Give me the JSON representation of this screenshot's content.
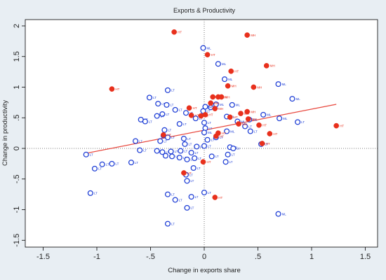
{
  "chart_data": {
    "type": "scatter",
    "title": "Exports & Productivity",
    "xlabel": "Change in exports share",
    "ylabel": "Change in productivity",
    "xlim": [
      -1.6,
      1.6
    ],
    "ylim": [
      -1.6,
      2.1
    ],
    "xticks": [
      -1.5,
      -1,
      -0.5,
      0,
      0.5,
      1,
      1.5
    ],
    "xtick_labels": [
      "-1.5",
      "-1",
      "-.5",
      "0",
      ".5",
      "1",
      "1.5"
    ],
    "yticks": [
      -1.5,
      -1,
      -0.5,
      0,
      0.5,
      1,
      1.5,
      2
    ],
    "ytick_labels": [
      "-1.5",
      "-1",
      "-.5",
      "0",
      ".5",
      "1",
      "1.5",
      "2"
    ],
    "reference_lines": {
      "x": 0,
      "y": 0,
      "style": "dotted"
    },
    "fit_line": {
      "x": [
        -1.1,
        1.23
      ],
      "y": [
        -0.08,
        0.72
      ],
      "color": "#e8473d"
    },
    "grid": false,
    "colors": {
      "hollow": "#1f3fd6",
      "filled": "#e8301c",
      "fit": "#e8473d",
      "background": "#e8eef3",
      "plot_area": "#ffffff"
    },
    "series": [
      {
        "marker": "hollow",
        "points": [
          {
            "x": -0.01,
            "y": 1.64,
            "label": "ML"
          },
          {
            "x": 0.13,
            "y": 1.38,
            "label": "ML"
          },
          {
            "x": 0.19,
            "y": 1.13,
            "label": "ML"
          },
          {
            "x": 0.69,
            "y": 1.05,
            "label": "ML"
          },
          {
            "x": 0.82,
            "y": 0.81,
            "label": "ML"
          },
          {
            "x": -0.34,
            "y": 0.95,
            "label": "LT"
          },
          {
            "x": -0.51,
            "y": 0.83,
            "label": "LT"
          },
          {
            "x": -0.43,
            "y": 0.73,
            "label": "LT"
          },
          {
            "x": -0.35,
            "y": 0.71,
            "label": "LT"
          },
          {
            "x": -0.27,
            "y": 0.63,
            "label": "LT"
          },
          {
            "x": -0.39,
            "y": 0.56,
            "label": "LT"
          },
          {
            "x": -0.44,
            "y": 0.53,
            "label": "LT"
          },
          {
            "x": -0.59,
            "y": 0.47,
            "label": "LT"
          },
          {
            "x": -0.55,
            "y": 0.44,
            "label": "LT"
          },
          {
            "x": -0.17,
            "y": 0.58,
            "label": "LT"
          },
          {
            "x": -0.08,
            "y": 0.49,
            "label": "LT"
          },
          {
            "x": -0.23,
            "y": 0.4,
            "label": "LT"
          },
          {
            "x": -0.37,
            "y": 0.3,
            "label": "LT"
          },
          {
            "x": -0.38,
            "y": 0.21,
            "label": "LT"
          },
          {
            "x": -0.34,
            "y": 0.18,
            "label": "LT"
          },
          {
            "x": -0.41,
            "y": 0.12,
            "label": "LT"
          },
          {
            "x": -0.64,
            "y": 0.12,
            "label": "LT"
          },
          {
            "x": -0.19,
            "y": 0.16,
            "label": "LT"
          },
          {
            "x": -0.18,
            "y": 0.07,
            "label": "LT"
          },
          {
            "x": -0.6,
            "y": -0.03,
            "label": "LT"
          },
          {
            "x": -0.44,
            "y": -0.04,
            "label": "LT"
          },
          {
            "x": -0.39,
            "y": -0.06,
            "label": "LT"
          },
          {
            "x": -0.31,
            "y": -0.05,
            "label": "LT"
          },
          {
            "x": -0.22,
            "y": -0.04,
            "label": "LT"
          },
          {
            "x": -0.12,
            "y": -0.07,
            "label": "LT"
          },
          {
            "x": -0.07,
            "y": 0.03,
            "label": "LT"
          },
          {
            "x": 0.0,
            "y": 0.04,
            "label": "LT"
          },
          {
            "x": -0.36,
            "y": -0.12,
            "label": "LT"
          },
          {
            "x": -0.3,
            "y": -0.13,
            "label": "LT"
          },
          {
            "x": -0.23,
            "y": -0.15,
            "label": "LT"
          },
          {
            "x": -0.16,
            "y": -0.18,
            "label": "LT"
          },
          {
            "x": -0.09,
            "y": -0.16,
            "label": "LT"
          },
          {
            "x": 0.07,
            "y": -0.13,
            "label": "LT"
          },
          {
            "x": 0.2,
            "y": -0.22,
            "label": "LT"
          },
          {
            "x": -0.68,
            "y": -0.23,
            "label": "LT"
          },
          {
            "x": -0.86,
            "y": -0.25,
            "label": "LT"
          },
          {
            "x": -0.95,
            "y": -0.26,
            "label": "LT"
          },
          {
            "x": -1.1,
            "y": -0.1,
            "label": "LT"
          },
          {
            "x": -1.02,
            "y": -0.33,
            "label": "LT"
          },
          {
            "x": -0.1,
            "y": -0.32,
            "label": "LT"
          },
          {
            "x": -0.17,
            "y": -0.43,
            "label": "LT"
          },
          {
            "x": -0.16,
            "y": -0.53,
            "label": "LT"
          },
          {
            "x": -1.06,
            "y": -0.73,
            "label": "LT"
          },
          {
            "x": -0.34,
            "y": -0.75,
            "label": "LT"
          },
          {
            "x": -0.12,
            "y": -0.79,
            "label": "LT"
          },
          {
            "x": -0.27,
            "y": -0.84,
            "label": "LT"
          },
          {
            "x": 0.0,
            "y": -0.72,
            "label": "LT"
          },
          {
            "x": -0.16,
            "y": -0.97,
            "label": "LT"
          },
          {
            "x": -0.34,
            "y": -1.23,
            "label": "LT"
          },
          {
            "x": 0.69,
            "y": -1.07,
            "label": "ML"
          },
          {
            "x": 0.7,
            "y": 0.49,
            "label": "ML"
          },
          {
            "x": 0.87,
            "y": 0.43,
            "label": "LT"
          },
          {
            "x": 0.55,
            "y": 0.55,
            "label": "ML"
          },
          {
            "x": 0.26,
            "y": 0.71,
            "label": "ML"
          },
          {
            "x": 0.11,
            "y": 0.72,
            "label": "ML"
          },
          {
            "x": 0.06,
            "y": 0.67,
            "label": "ML"
          },
          {
            "x": 0.01,
            "y": 0.68,
            "label": "ML"
          },
          {
            "x": -0.01,
            "y": 0.61,
            "label": "LT"
          },
          {
            "x": 0.0,
            "y": 0.42,
            "label": "LT"
          },
          {
            "x": 0.01,
            "y": 0.33,
            "label": "LT"
          },
          {
            "x": 0.0,
            "y": 0.26,
            "label": "ML"
          },
          {
            "x": 0.21,
            "y": 0.52,
            "label": "ML"
          },
          {
            "x": 0.31,
            "y": 0.44,
            "label": "ML"
          },
          {
            "x": 0.42,
            "y": 0.47,
            "label": "ML"
          },
          {
            "x": 0.43,
            "y": 0.28,
            "label": "LT"
          },
          {
            "x": 0.38,
            "y": 0.36,
            "label": "LT"
          },
          {
            "x": 0.53,
            "y": 0.07,
            "label": "LT"
          },
          {
            "x": 0.21,
            "y": 0.28,
            "label": "ML"
          },
          {
            "x": 0.03,
            "y": 0.14,
            "label": "LT"
          },
          {
            "x": 0.11,
            "y": 0.18,
            "label": "LT"
          },
          {
            "x": 0.24,
            "y": 0.02,
            "label": "ML"
          },
          {
            "x": 0.27,
            "y": 0.0,
            "label": "LT"
          },
          {
            "x": 0.22,
            "y": -0.1,
            "label": "LT"
          }
        ]
      },
      {
        "marker": "filled",
        "points": [
          {
            "x": -0.28,
            "y": 1.9,
            "label": "HT"
          },
          {
            "x": 0.4,
            "y": 1.85,
            "label": "MH"
          },
          {
            "x": 0.03,
            "y": 1.53,
            "label": "HT"
          },
          {
            "x": 0.58,
            "y": 1.35,
            "label": "MH"
          },
          {
            "x": 0.25,
            "y": 1.26,
            "label": "HT"
          },
          {
            "x": -0.86,
            "y": 0.97,
            "label": "HT"
          },
          {
            "x": 0.46,
            "y": 1.0,
            "label": "MH"
          },
          {
            "x": 0.22,
            "y": 1.02,
            "label": "MH"
          },
          {
            "x": 0.13,
            "y": 0.84,
            "label": "MH"
          },
          {
            "x": 0.08,
            "y": 0.84,
            "label": "MH"
          },
          {
            "x": 0.16,
            "y": 0.84,
            "label": "MH"
          },
          {
            "x": -0.14,
            "y": 0.66,
            "label": "HT"
          },
          {
            "x": -0.12,
            "y": 0.54,
            "label": "HT"
          },
          {
            "x": -0.03,
            "y": 0.53,
            "label": "HT"
          },
          {
            "x": 0.01,
            "y": 0.55,
            "label": "HT"
          },
          {
            "x": 0.1,
            "y": 0.65,
            "label": "MH"
          },
          {
            "x": 0.06,
            "y": 0.74,
            "label": "MH"
          },
          {
            "x": 0.34,
            "y": 0.57,
            "label": "MH"
          },
          {
            "x": 0.4,
            "y": 0.6,
            "label": "MH"
          },
          {
            "x": 0.24,
            "y": 0.51,
            "label": "HT"
          },
          {
            "x": 0.41,
            "y": 0.48,
            "label": "MH"
          },
          {
            "x": 0.51,
            "y": 0.38,
            "label": "HT"
          },
          {
            "x": 0.32,
            "y": 0.4,
            "label": "MH"
          },
          {
            "x": 0.61,
            "y": 0.24,
            "label": "HT"
          },
          {
            "x": 0.54,
            "y": 0.08,
            "label": "HT"
          },
          {
            "x": 0.13,
            "y": 0.25,
            "label": "HT"
          },
          {
            "x": 0.11,
            "y": 0.2,
            "label": "HT"
          },
          {
            "x": -0.38,
            "y": 0.22,
            "label": "HT"
          },
          {
            "x": -0.19,
            "y": -0.4,
            "label": "HT"
          },
          {
            "x": -0.01,
            "y": -0.22,
            "label": "HT"
          },
          {
            "x": 0.1,
            "y": -0.8,
            "label": "HT"
          },
          {
            "x": 1.23,
            "y": 0.37,
            "label": "HT"
          }
        ]
      }
    ]
  }
}
